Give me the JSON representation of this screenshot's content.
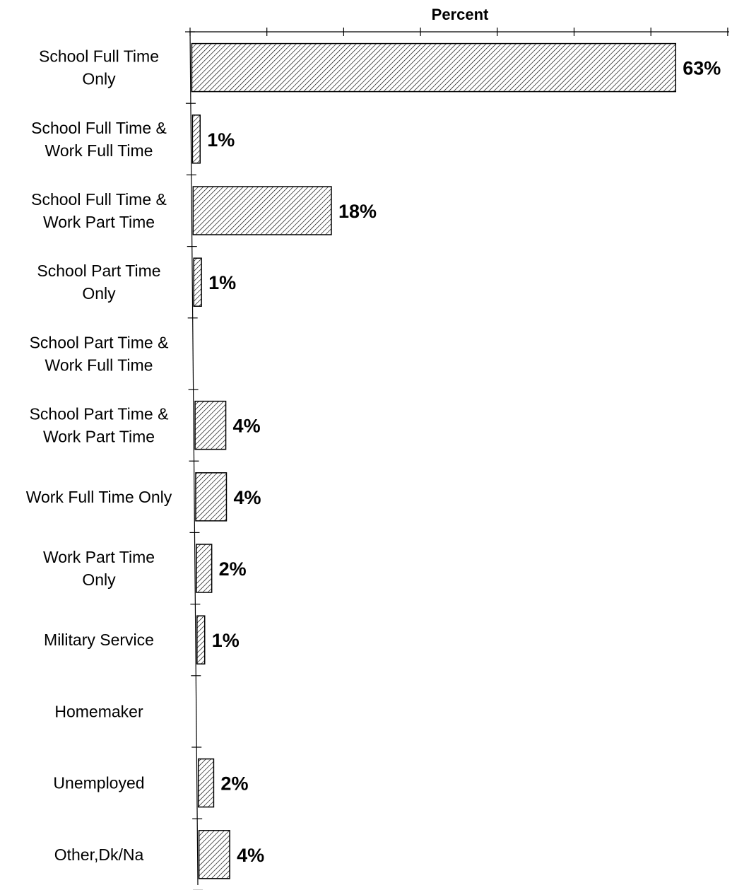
{
  "chart_data": {
    "type": "bar",
    "orientation": "horizontal",
    "xlabel": "Percent",
    "xlim": [
      0,
      70
    ],
    "grid": false,
    "legend": "none",
    "bar_fill": "diagonal-hatch",
    "categories": [
      [
        "School Full Time",
        "Only"
      ],
      [
        "School Full Time &",
        "Work Full Time"
      ],
      [
        "School Full Time &",
        "Work Part Time"
      ],
      [
        "School Part Time",
        "Only"
      ],
      [
        "School Part Time &",
        "Work Full Time"
      ],
      [
        "School Part Time &",
        "Work Part Time"
      ],
      [
        "Work Full Time Only"
      ],
      [
        "Work Part Time",
        "Only"
      ],
      [
        "Military Service"
      ],
      [
        "Homemaker"
      ],
      [
        "Unemployed"
      ],
      [
        "Other,Dk/Na"
      ]
    ],
    "values": [
      63,
      1,
      18,
      1,
      0,
      4,
      4,
      2,
      1,
      0,
      2,
      4
    ],
    "value_labels": [
      "63%",
      "1%",
      "18%",
      "1%",
      "",
      "4%",
      "4%",
      "2%",
      "1%",
      "",
      "2%",
      "4%"
    ]
  }
}
